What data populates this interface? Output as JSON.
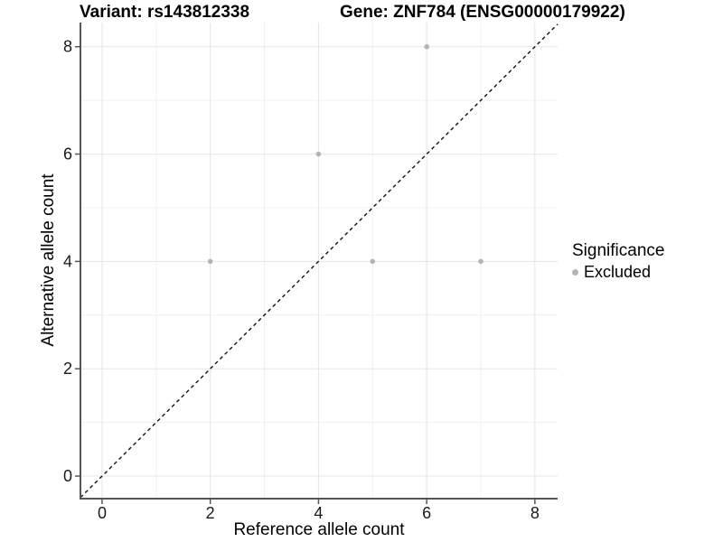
{
  "chart_data": {
    "type": "scatter",
    "titles": {
      "left": "Variant: rs143812338",
      "right": "Gene: ZNF784 (ENSG00000179922)"
    },
    "xlabel": "Reference allele count",
    "ylabel": "Alternative allele count",
    "xlim": [
      -0.4,
      8.42
    ],
    "ylim": [
      -0.42,
      8.45
    ],
    "x_major_ticks": [
      0,
      2,
      4,
      6,
      8
    ],
    "y_major_ticks": [
      0,
      2,
      4,
      6,
      8
    ],
    "x_minor_gridlines": [
      1,
      3,
      5,
      7
    ],
    "y_minor_gridlines": [
      1,
      3,
      5,
      7
    ],
    "grid": "major and minor gridlines, no panel border, left+bottom axis lines",
    "legend": {
      "title": "Significance",
      "position": "right",
      "items": [
        {
          "label": "Excluded",
          "color": "#b4b4b4"
        }
      ]
    },
    "series": [
      {
        "name": "Excluded",
        "color": "#b4b4b4",
        "points": [
          [
            2,
            4
          ],
          [
            4,
            6
          ],
          [
            5,
            4
          ],
          [
            6,
            8
          ],
          [
            7,
            4
          ]
        ]
      }
    ],
    "identity_line": {
      "style": "dashed",
      "color": "#111111",
      "slope": 1,
      "intercept": 0
    },
    "colors": {
      "point": "#b4b4b4",
      "grid_major": "#e5e5e5",
      "grid_minor": "#f0f0f0",
      "axis_line": "#565656",
      "tick_text": "#1a1a1a"
    }
  }
}
